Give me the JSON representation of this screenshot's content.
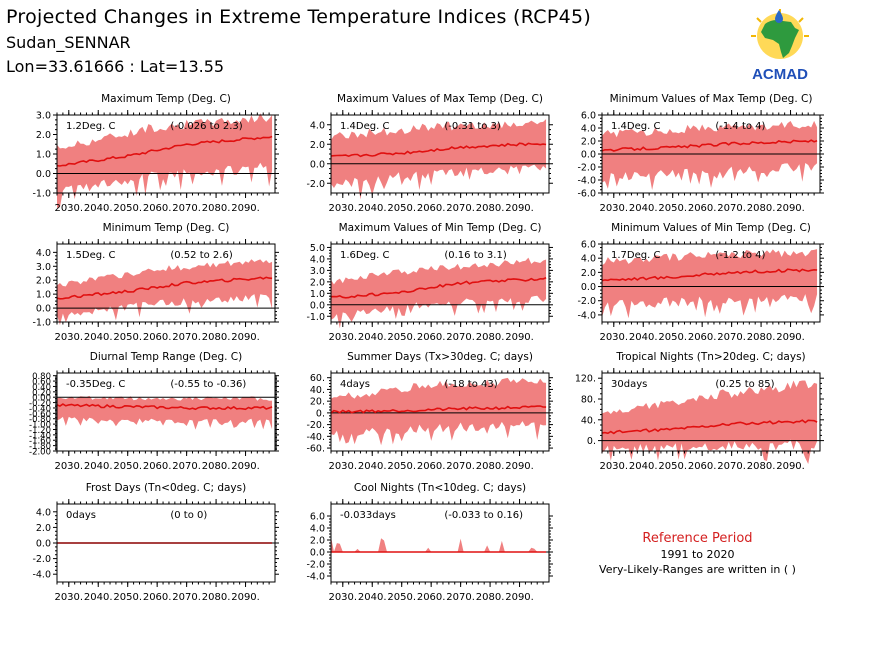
{
  "header": {
    "title": "Projected Changes in Extreme Temperature Indices (RCP45)",
    "location": "Sudan_SENNAR",
    "coords": "Lon=33.61666 : Lat=13.55"
  },
  "logo": {
    "text": "ACMAD",
    "icon": "africa-map-sun-drop-icon"
  },
  "reference": {
    "title": "Reference Period",
    "years": "1991 to 2020",
    "note": "Very-Likely-Ranges are written in ( )"
  },
  "colors": {
    "band": "#f08080",
    "line": "#e01010",
    "zero": "#000000"
  },
  "chart_data": [
    {
      "type": "line",
      "title": "Maximum Temp (Deg. C)",
      "change": "1.2Deg. C",
      "range": "(-0.026 to 2.3)",
      "ylim": [
        -1.0,
        3.0
      ],
      "yticks": [
        "-1.0",
        "0.0",
        "1.0",
        "2.0",
        "3.0"
      ],
      "x": [
        "2030.",
        "2040.",
        "2050.",
        "2060.",
        "2070.",
        "2080.",
        "2090."
      ],
      "series": [
        {
          "trend": [
            {
              "x": 2026,
              "y": 0.4
            },
            {
              "x": 2050,
              "y": 0.9
            },
            {
              "x": 2070,
              "y": 1.5
            },
            {
              "x": 2099,
              "y": 1.9
            }
          ],
          "band_low": [
            {
              "x": 2026,
              "y": -0.7
            },
            {
              "x": 2060,
              "y": 0.2
            },
            {
              "x": 2099,
              "y": 0.6
            }
          ],
          "band_high": [
            {
              "x": 2026,
              "y": 1.3
            },
            {
              "x": 2060,
              "y": 2.4
            },
            {
              "x": 2099,
              "y": 2.9
            }
          ]
        }
      ]
    },
    {
      "type": "line",
      "title": "Maximum Values of Max Temp (Deg. C)",
      "change": "1.4Deg. C",
      "range": "(-0.31 to 3)",
      "ylim": [
        -3.0,
        5.0
      ],
      "yticks": [
        "-2.0",
        "0.0",
        "2.0",
        "4.0"
      ],
      "x": [
        "2030.",
        "2040.",
        "2050.",
        "2060.",
        "2070.",
        "2080.",
        "2090."
      ],
      "series": [
        {
          "trend": [
            {
              "x": 2026,
              "y": 0.7
            },
            {
              "x": 2050,
              "y": 1.1
            },
            {
              "x": 2070,
              "y": 1.7
            },
            {
              "x": 2099,
              "y": 2.1
            }
          ],
          "band_low": [
            {
              "x": 2026,
              "y": -1.6
            },
            {
              "x": 2060,
              "y": -0.5
            },
            {
              "x": 2099,
              "y": 0.0
            }
          ],
          "band_high": [
            {
              "x": 2026,
              "y": 2.8
            },
            {
              "x": 2060,
              "y": 3.8
            },
            {
              "x": 2099,
              "y": 4.2
            }
          ]
        }
      ]
    },
    {
      "type": "line",
      "title": "Minimum Values of Max Temp (Deg. C)",
      "change": "1.4Deg. C",
      "range": "(-1.4 to 4)",
      "ylim": [
        -6.0,
        6.0
      ],
      "yticks": [
        "-6.0",
        "-4.0",
        "-2.0",
        "0.0",
        "2.0",
        "4.0",
        "6.0"
      ],
      "x": [
        "2030.",
        "2040.",
        "2050.",
        "2060.",
        "2070.",
        "2080.",
        "2090."
      ],
      "series": [
        {
          "trend": [
            {
              "x": 2026,
              "y": 0.6
            },
            {
              "x": 2050,
              "y": 1.0
            },
            {
              "x": 2070,
              "y": 1.6
            },
            {
              "x": 2099,
              "y": 2.0
            }
          ],
          "band_low": [
            {
              "x": 2026,
              "y": -3.0
            },
            {
              "x": 2060,
              "y": -2.0
            },
            {
              "x": 2099,
              "y": -1.2
            }
          ],
          "band_high": [
            {
              "x": 2026,
              "y": 3.0
            },
            {
              "x": 2060,
              "y": 4.0
            },
            {
              "x": 2099,
              "y": 4.6
            }
          ]
        }
      ]
    },
    {
      "type": "line",
      "title": "Minimum Temp (Deg. C)",
      "change": "1.5Deg. C",
      "range": "(0.52 to 2.6)",
      "ylim": [
        -1.0,
        4.6
      ],
      "yticks": [
        "-1.0",
        "0.0",
        "1.0",
        "2.0",
        "3.0",
        "4.0"
      ],
      "x": [
        "2030.",
        "2040.",
        "2050.",
        "2060.",
        "2070.",
        "2080.",
        "2090."
      ],
      "series": [
        {
          "trend": [
            {
              "x": 2026,
              "y": 0.7
            },
            {
              "x": 2050,
              "y": 1.2
            },
            {
              "x": 2070,
              "y": 1.8
            },
            {
              "x": 2099,
              "y": 2.2
            }
          ],
          "band_low": [
            {
              "x": 2026,
              "y": -0.3
            },
            {
              "x": 2060,
              "y": 0.6
            },
            {
              "x": 2099,
              "y": 1.1
            }
          ],
          "band_high": [
            {
              "x": 2026,
              "y": 1.6
            },
            {
              "x": 2060,
              "y": 2.8
            },
            {
              "x": 2099,
              "y": 3.4
            }
          ]
        }
      ]
    },
    {
      "type": "line",
      "title": "Maximum Values of Min Temp (Deg. C)",
      "change": "1.6Deg. C",
      "range": "(0.16 to 3.1)",
      "ylim": [
        -1.5,
        5.3
      ],
      "yticks": [
        "-1.0",
        "0.0",
        "1.0",
        "2.0",
        "3.0",
        "4.0",
        "5.0"
      ],
      "x": [
        "2030.",
        "2040.",
        "2050.",
        "2060.",
        "2070.",
        "2080.",
        "2090."
      ],
      "series": [
        {
          "trend": [
            {
              "x": 2026,
              "y": 0.6
            },
            {
              "x": 2050,
              "y": 1.1
            },
            {
              "x": 2070,
              "y": 1.9
            },
            {
              "x": 2099,
              "y": 2.3
            }
          ],
          "band_low": [
            {
              "x": 2026,
              "y": -0.7
            },
            {
              "x": 2060,
              "y": 0.4
            },
            {
              "x": 2099,
              "y": 0.9
            }
          ],
          "band_high": [
            {
              "x": 2026,
              "y": 2.0
            },
            {
              "x": 2060,
              "y": 3.2
            },
            {
              "x": 2099,
              "y": 3.9
            }
          ]
        }
      ]
    },
    {
      "type": "line",
      "title": "Minimum Values of Min Temp (Deg. C)",
      "change": "1.7Deg. C",
      "range": "(-1.2 to 4)",
      "ylim": [
        -5.0,
        6.0
      ],
      "yticks": [
        "-4.0",
        "-2.0",
        "0.0",
        "2.0",
        "4.0",
        "6.0"
      ],
      "x": [
        "2030.",
        "2040.",
        "2050.",
        "2060.",
        "2070.",
        "2080.",
        "2090."
      ],
      "series": [
        {
          "trend": [
            {
              "x": 2026,
              "y": 0.9
            },
            {
              "x": 2050,
              "y": 1.3
            },
            {
              "x": 2070,
              "y": 2.0
            },
            {
              "x": 2099,
              "y": 2.4
            }
          ],
          "band_low": [
            {
              "x": 2026,
              "y": -2.0
            },
            {
              "x": 2060,
              "y": -1.3
            },
            {
              "x": 2099,
              "y": -0.8
            }
          ],
          "band_high": [
            {
              "x": 2026,
              "y": 3.6
            },
            {
              "x": 2060,
              "y": 4.4
            },
            {
              "x": 2099,
              "y": 4.9
            }
          ]
        }
      ]
    },
    {
      "type": "line",
      "title": "Diurnal Temp Range (Deg. C)",
      "change": "-0.35Deg. C",
      "range": "(-0.55 to -0.36)",
      "ylim": [
        -2.0,
        0.9
      ],
      "yticks": [
        "-2.00",
        "-1.80",
        "-1.60",
        "-1.40",
        "-1.20",
        "-1.00",
        "-0.80",
        "-0.60",
        "-0.40",
        "-0.20",
        "0.00",
        "0.20",
        "0.40",
        "0.60",
        "0.80"
      ],
      "x": [
        "2030.",
        "2040.",
        "2050.",
        "2060.",
        "2070.",
        "2080.",
        "2090."
      ],
      "series": [
        {
          "trend": [
            {
              "x": 2026,
              "y": -0.3
            },
            {
              "x": 2050,
              "y": -0.35
            },
            {
              "x": 2070,
              "y": -0.4
            },
            {
              "x": 2099,
              "y": -0.4
            }
          ],
          "band_low": [
            {
              "x": 2026,
              "y": -0.7
            },
            {
              "x": 2060,
              "y": -0.8
            },
            {
              "x": 2099,
              "y": -0.8
            }
          ],
          "band_high": [
            {
              "x": 2026,
              "y": 0.0
            },
            {
              "x": 2060,
              "y": -0.05
            },
            {
              "x": 2099,
              "y": -0.05
            }
          ]
        }
      ]
    },
    {
      "type": "line",
      "title": "Summer Days (Tx>30deg. C; days)",
      "change": "4days",
      "range": "(-18 to 43)",
      "ylim": [
        -65,
        68
      ],
      "yticks": [
        "-60.",
        "-40.",
        "-20.",
        "0.",
        "20.",
        "40.",
        "60."
      ],
      "x": [
        "2030.",
        "2040.",
        "2050.",
        "2060.",
        "2070.",
        "2080.",
        "2090."
      ],
      "series": [
        {
          "trend": [
            {
              "x": 2026,
              "y": 2
            },
            {
              "x": 2050,
              "y": 4
            },
            {
              "x": 2070,
              "y": 7
            },
            {
              "x": 2099,
              "y": 10
            }
          ],
          "band_low": [
            {
              "x": 2026,
              "y": -30
            },
            {
              "x": 2060,
              "y": -18
            },
            {
              "x": 2099,
              "y": -12
            }
          ],
          "band_high": [
            {
              "x": 2026,
              "y": 25
            },
            {
              "x": 2060,
              "y": 48
            },
            {
              "x": 2099,
              "y": 55
            }
          ]
        }
      ]
    },
    {
      "type": "line",
      "title": "Tropical Nights (Tn>20deg. C; days)",
      "change": "30days",
      "range": "(0.25 to 85)",
      "ylim": [
        -20,
        130
      ],
      "yticks": [
        "0.",
        "40.",
        "80.",
        "120."
      ],
      "x": [
        "2030.",
        "2040.",
        "2050.",
        "2060.",
        "2070.",
        "2080.",
        "2090."
      ],
      "series": [
        {
          "trend": [
            {
              "x": 2026,
              "y": 15
            },
            {
              "x": 2050,
              "y": 22
            },
            {
              "x": 2070,
              "y": 32
            },
            {
              "x": 2099,
              "y": 38
            }
          ],
          "band_low": [
            {
              "x": 2026,
              "y": -10
            },
            {
              "x": 2060,
              "y": 0
            },
            {
              "x": 2099,
              "y": 5
            }
          ],
          "band_high": [
            {
              "x": 2026,
              "y": 50
            },
            {
              "x": 2060,
              "y": 85
            },
            {
              "x": 2099,
              "y": 110
            }
          ]
        }
      ]
    },
    {
      "type": "line",
      "title": "Frost Days (Tn<0deg. C; days)",
      "change": "0days",
      "range": "(0 to 0)",
      "ylim": [
        -5.0,
        5.0
      ],
      "yticks": [
        "-4.0",
        "-2.0",
        "0.0",
        "2.0",
        "4.0"
      ],
      "x": [
        "2030.",
        "2040.",
        "2050.",
        "2060.",
        "2070.",
        "2080.",
        "2090."
      ],
      "series": [
        {
          "trend": [
            {
              "x": 2026,
              "y": 0
            },
            {
              "x": 2099,
              "y": 0
            }
          ],
          "band_low": [
            {
              "x": 2026,
              "y": 0
            },
            {
              "x": 2099,
              "y": 0
            }
          ],
          "band_high": [
            {
              "x": 2026,
              "y": 0
            },
            {
              "x": 2099,
              "y": 0
            }
          ]
        }
      ]
    },
    {
      "type": "line",
      "title": "Cool Nights (Tn<10deg. C; days)",
      "change": "-0.033days",
      "range": "(-0.033 to 0.16)",
      "ylim": [
        -5.0,
        8.0
      ],
      "yticks": [
        "-4.0",
        "-2.0",
        "0.0",
        "2.0",
        "4.0",
        "6.0"
      ],
      "x": [
        "2030.",
        "2040.",
        "2050.",
        "2060.",
        "2070.",
        "2080.",
        "2090."
      ],
      "series": [
        {
          "trend": [
            {
              "x": 2026,
              "y": 0
            },
            {
              "x": 2099,
              "y": 0
            }
          ],
          "band_low": [
            {
              "x": 2026,
              "y": 0
            },
            {
              "x": 2099,
              "y": 0
            }
          ],
          "band_high": [
            {
              "x": 2026,
              "y": 0.4
            },
            {
              "x": 2099,
              "y": 0.2
            }
          ]
        }
      ]
    }
  ]
}
